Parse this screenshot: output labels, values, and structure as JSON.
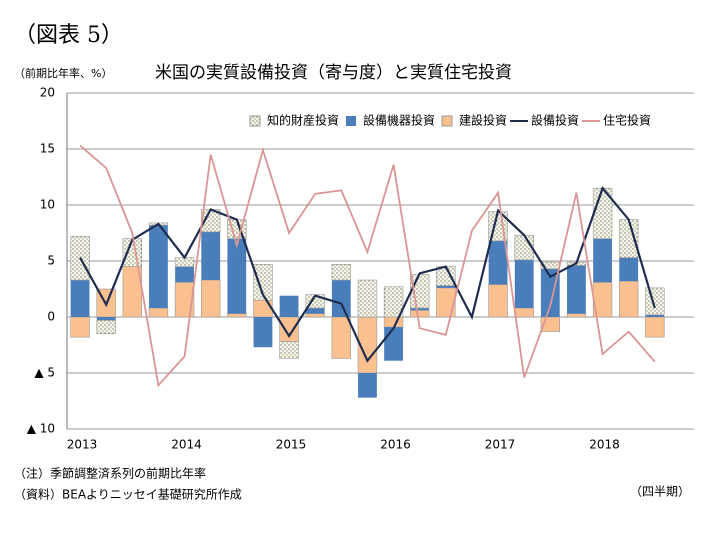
{
  "chart_data": {
    "type": "bar",
    "title": "（図表 5）",
    "subtitle": "米国の実質設備投資（寄与度）と実質住宅投資",
    "y_label": "（前期比年率、%）",
    "x_label": "（四半期）",
    "notes": [
      "（注）季節調整済系列の前期比年率",
      "（資料）BEAよりニッセイ基礎研究所作成"
    ],
    "categories": [
      "2013",
      null,
      null,
      null,
      "2014",
      null,
      null,
      null,
      "2015",
      null,
      null,
      null,
      "2016",
      null,
      null,
      null,
      "2017",
      null,
      null,
      null,
      "2018",
      null,
      null
    ],
    "series": [
      {
        "name": "知的財産投資",
        "type": "bar",
        "color": "#f3f1d8",
        "values": [
          3.9,
          -1.2,
          2.5,
          0.2,
          0.8,
          2.0,
          1.7,
          3.2,
          -1.5,
          1.2,
          1.4,
          3.3,
          2.7,
          3.0,
          1.7,
          0,
          2.6,
          2.2,
          0.6,
          0.3,
          4.5,
          3.4,
          2.4
        ]
      },
      {
        "name": "設備機器投資",
        "type": "bar",
        "color": "#4a7ebb",
        "values": [
          3.3,
          -0.3,
          0,
          7.4,
          1.4,
          4.3,
          6.7,
          -2.7,
          1.9,
          0.5,
          3.3,
          -2.2,
          -3.0,
          0.2,
          0.2,
          0,
          3.9,
          4.3,
          4.3,
          4.3,
          3.9,
          2.1,
          0.2
        ]
      },
      {
        "name": "建設投資",
        "type": "bar",
        "color": "#fac090",
        "values": [
          -1.8,
          2.5,
          4.5,
          0.8,
          3.1,
          3.3,
          0.3,
          1.5,
          -2.2,
          0.3,
          -3.7,
          -5.0,
          -0.9,
          0.6,
          2.6,
          0,
          2.9,
          0.8,
          -1.3,
          0.3,
          3.1,
          3.2,
          -1.8
        ]
      },
      {
        "name": "設備投資",
        "type": "line",
        "color": "#1f2d4f",
        "values": [
          5.3,
          1.1,
          6.9,
          8.3,
          5.3,
          9.6,
          8.7,
          2.0,
          -1.7,
          1.9,
          1.2,
          -3.9,
          -1.0,
          3.9,
          4.5,
          0,
          9.5,
          7.3,
          3.6,
          4.8,
          11.5,
          8.7,
          0.8
        ]
      },
      {
        "name": "住宅投資",
        "type": "line",
        "color": "#d99694",
        "values": [
          15.3,
          13.3,
          7.5,
          -6.1,
          -3.5,
          14.5,
          6.4,
          14.9,
          7.5,
          11.0,
          11.3,
          5.8,
          13.6,
          -1.0,
          -1.6,
          7.7,
          11.1,
          -5.4,
          1.0,
          11.1,
          -3.3,
          -1.3,
          -4.0
        ]
      }
    ],
    "ylim": [
      -10,
      20
    ],
    "yticks": [
      {
        "value": -10,
        "label": "▲ 10"
      },
      {
        "value": -5,
        "label": "▲ 5"
      },
      0,
      5,
      10,
      15,
      20
    ],
    "grid": true,
    "legend": "top-right"
  }
}
